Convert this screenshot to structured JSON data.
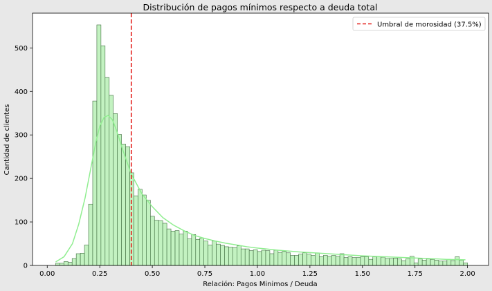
{
  "chart_data": {
    "type": "bar",
    "title": "Distribución de pagos mínimos respecto a deuda total",
    "xlabel": "Relación: Pagos Minimos / Deuda",
    "ylabel": "Cantidad de clientes",
    "xlim": [
      -0.07,
      2.1
    ],
    "ylim": [
      0,
      580
    ],
    "xticks": [
      0.0,
      0.25,
      0.5,
      0.75,
      1.0,
      1.25,
      1.5,
      1.75,
      2.0
    ],
    "xtick_labels": [
      "0.00",
      "0.25",
      "0.50",
      "0.75",
      "1.00",
      "1.25",
      "1.50",
      "1.75",
      "2.00"
    ],
    "yticks": [
      0,
      100,
      200,
      300,
      400,
      500
    ],
    "ytick_labels": [
      "0",
      "100",
      "200",
      "300",
      "400",
      "500"
    ],
    "grid": false,
    "legend_position": "top-right",
    "bin_start": 0.04,
    "bin_width": 0.0196,
    "values": [
      5,
      5,
      9,
      7,
      16,
      27,
      28,
      47,
      141,
      378,
      553,
      505,
      432,
      391,
      349,
      301,
      279,
      273,
      213,
      160,
      175,
      162,
      150,
      113,
      104,
      103,
      97,
      84,
      79,
      80,
      72,
      79,
      61,
      71,
      60,
      63,
      56,
      47,
      56,
      49,
      46,
      43,
      42,
      41,
      45,
      38,
      38,
      34,
      36,
      32,
      35,
      34,
      27,
      35,
      30,
      32,
      29,
      23,
      23,
      26,
      29,
      26,
      23,
      29,
      20,
      23,
      21,
      23,
      21,
      27,
      18,
      20,
      18,
      18,
      20,
      20,
      14,
      20,
      21,
      19,
      16,
      16,
      17,
      15,
      11,
      15,
      21,
      6,
      15,
      12,
      15,
      14,
      12,
      10,
      10,
      14,
      11,
      20,
      12,
      6
    ],
    "series": [
      {
        "name": "",
        "type": "histogram",
        "color": "#c3f2c1",
        "edge_color": "#3c6a3c"
      },
      {
        "name": "",
        "type": "kde",
        "color": "#90ee90",
        "x": [
          0.04,
          0.08,
          0.12,
          0.15,
          0.18,
          0.21,
          0.23,
          0.25,
          0.27,
          0.29,
          0.31,
          0.33,
          0.36,
          0.4,
          0.45,
          0.5,
          0.55,
          0.6,
          0.65,
          0.7,
          0.75,
          0.8,
          0.85,
          0.9,
          0.95,
          1.0,
          1.1,
          1.2,
          1.3,
          1.4,
          1.5,
          1.6,
          1.7,
          1.8,
          1.9,
          1.99
        ],
        "y": [
          8,
          20,
          50,
          95,
          155,
          230,
          280,
          320,
          340,
          345,
          335,
          310,
          265,
          210,
          165,
          135,
          110,
          93,
          80,
          69,
          62,
          56,
          51,
          47,
          43,
          40,
          35,
          31,
          28,
          25,
          22,
          20,
          18,
          16,
          14,
          13
        ]
      },
      {
        "name": "Umbral de morosidad (37.5%)",
        "type": "vline",
        "x": 0.4,
        "color": "#e3201c",
        "style": "dashed"
      }
    ]
  }
}
